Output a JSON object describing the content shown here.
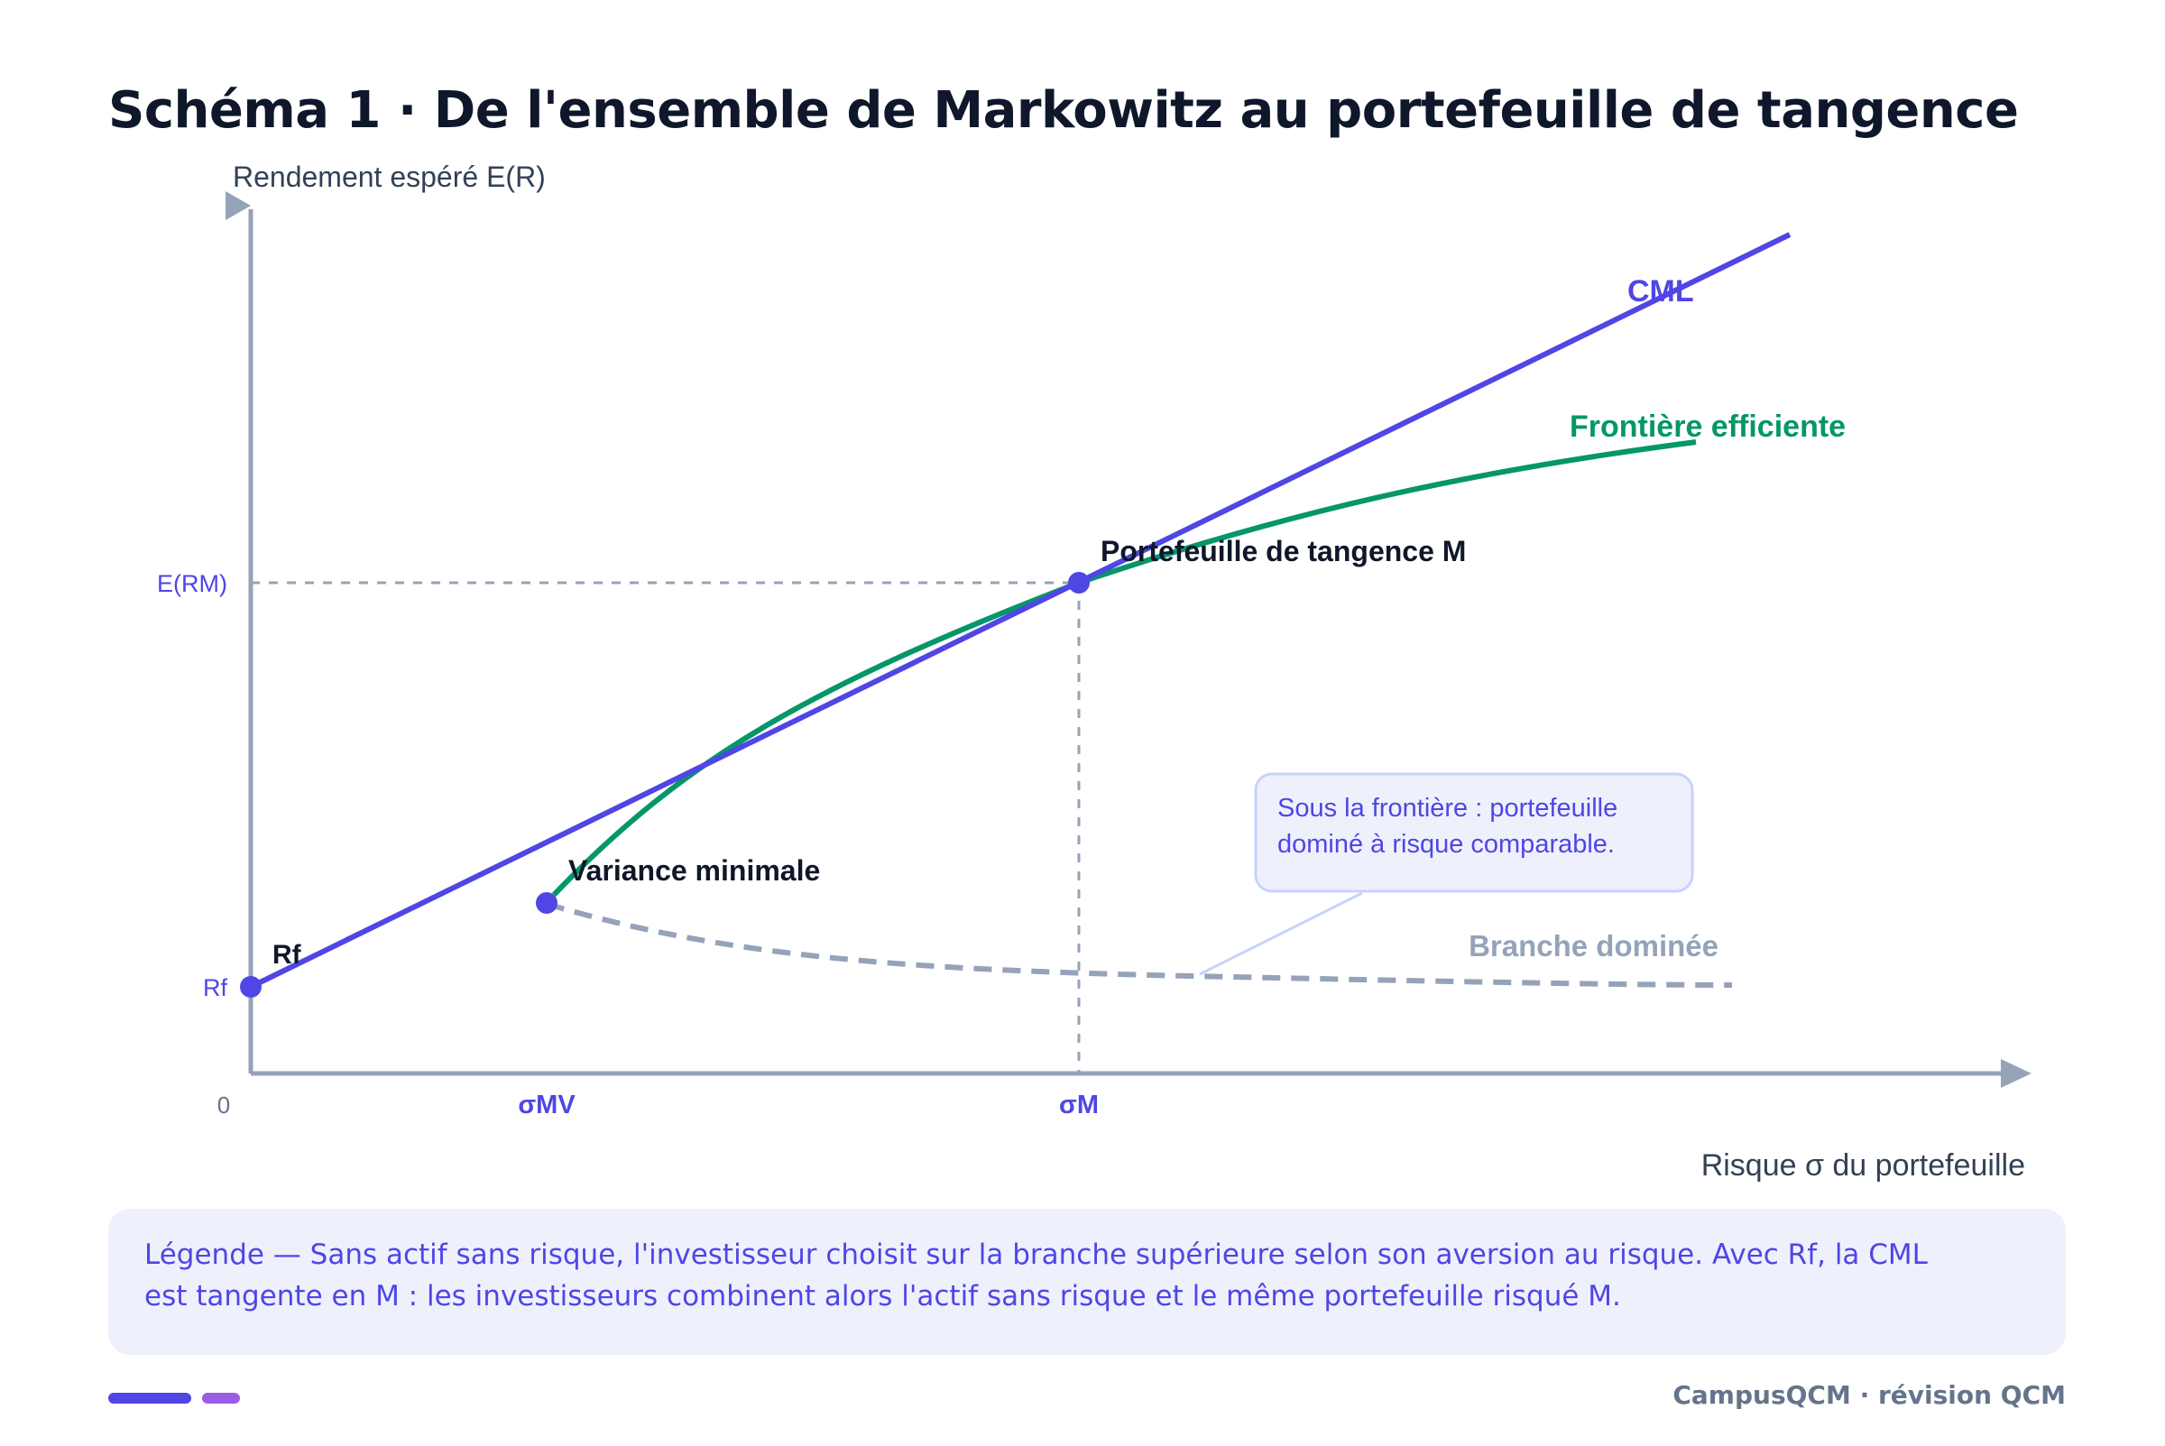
{
  "title": "Schéma 1 · De l'ensemble de Markowitz au portefeuille de tangence",
  "axes": {
    "y_label": "Rendement espéré E(R)",
    "x_label": "Risque σ du portefeuille",
    "origin": "0",
    "y_ticks": {
      "erm": "E(RM)",
      "rf": "Rf"
    },
    "x_ticks": {
      "smv": "σMV",
      "sm": "σM"
    }
  },
  "labels": {
    "cml": "CML",
    "frontier": "Frontière efficiente",
    "tangency": "Portefeuille de tangence M",
    "min_variance": "Variance minimale",
    "rf_point": "Rf",
    "dominated": "Branche dominée"
  },
  "callout": "Sous la frontière : portefeuille dominé à risque comparable.",
  "legend": "Légende — Sans actif sans risque, l'investisseur choisit sur la branche supérieure selon son aversion au risque. Avec Rf, la CML est tangente en M : les investisseurs combinent alors l'actif sans risque et le même portefeuille risqué M.",
  "footer": "CampusQCM · révision QCM",
  "colors": {
    "cml": "#4f46e5",
    "frontier": "#059669",
    "dominated": "#94a3b8",
    "axis": "#94a3b8",
    "point": "#4f46e5",
    "title": "#0f172a"
  }
}
